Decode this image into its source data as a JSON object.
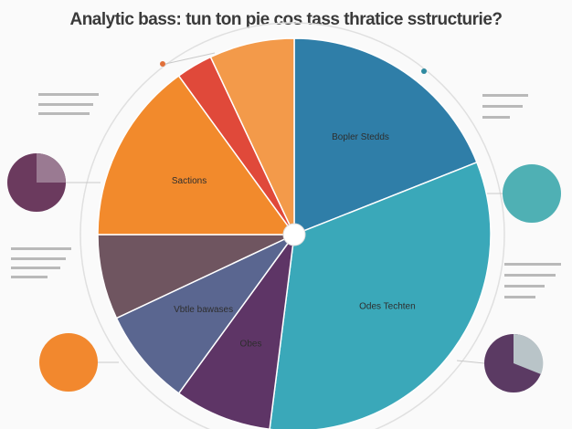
{
  "chart_data": {
    "type": "pie",
    "title": "Analytic bass: tun ton pie cos tass thratice sstructurie?",
    "categories": [
      "Bopler Stedds",
      "Odes Techten",
      "Obes",
      "Vbtle bawases",
      null,
      "Sactions",
      null,
      null
    ],
    "values": [
      19,
      33,
      8,
      8,
      7,
      15,
      3,
      7
    ],
    "colors": [
      "#2f7ea8",
      "#3aa8b9",
      "#5e3566",
      "#5a6690",
      "#6f5560",
      "#f28a2c",
      "#e0493a",
      "#f39a4a"
    ]
  }
}
